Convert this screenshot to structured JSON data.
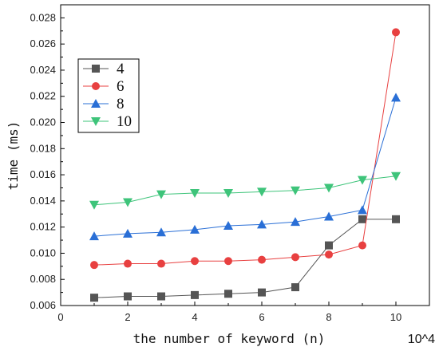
{
  "chart_data": {
    "type": "line",
    "xlabel": "the number of keyword (n)",
    "ylabel": "time (ms)",
    "x_scale_note": "10^4",
    "xlim": [
      0,
      11
    ],
    "ylim": [
      0.006,
      0.029
    ],
    "x_ticks": [
      0,
      2,
      4,
      6,
      8,
      10
    ],
    "x_tick_labels": [
      "0",
      "2",
      "4",
      "6",
      "8",
      "10"
    ],
    "y_ticks": [
      0.006,
      0.008,
      0.01,
      0.012,
      0.014,
      0.016,
      0.018,
      0.02,
      0.022,
      0.024,
      0.026,
      0.028
    ],
    "y_tick_labels": [
      "0.006",
      "0.008",
      "0.010",
      "0.012",
      "0.014",
      "0.016",
      "0.018",
      "0.020",
      "0.022",
      "0.024",
      "0.026",
      "0.028"
    ],
    "grid": false,
    "legend_position": "top-left",
    "x": [
      1,
      2,
      3,
      4,
      5,
      6,
      7,
      8,
      9,
      10
    ],
    "series": [
      {
        "name": "4",
        "color": "#555555",
        "marker": "square",
        "values": [
          0.0066,
          0.0067,
          0.0067,
          0.0068,
          0.0069,
          0.007,
          0.0074,
          0.0106,
          0.0126,
          0.0126
        ]
      },
      {
        "name": "6",
        "color": "#e84040",
        "marker": "circle",
        "values": [
          0.0091,
          0.0092,
          0.0092,
          0.0094,
          0.0094,
          0.0095,
          0.0097,
          0.0099,
          0.0106,
          0.0269
        ]
      },
      {
        "name": "8",
        "color": "#2a6fd6",
        "marker": "triangle-up",
        "values": [
          0.0113,
          0.0115,
          0.0116,
          0.0118,
          0.0121,
          0.0122,
          0.0124,
          0.0128,
          0.0133,
          0.0219
        ]
      },
      {
        "name": "10",
        "color": "#3ec47a",
        "marker": "triangle-down",
        "values": [
          0.0137,
          0.0139,
          0.0145,
          0.0146,
          0.0146,
          0.0147,
          0.0148,
          0.015,
          0.0156,
          0.0159
        ]
      }
    ]
  }
}
